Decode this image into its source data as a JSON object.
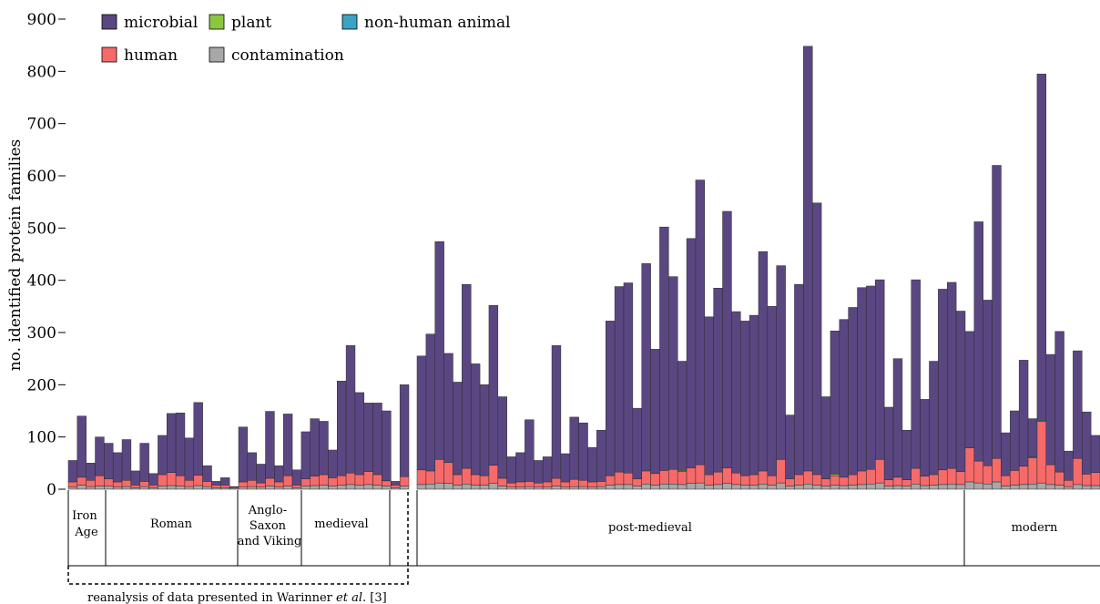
{
  "colors": {
    "microbial": "#5a4782",
    "plant": "#8cc63f",
    "non_human_animal": "#3aa3c4",
    "human": "#f76a6a",
    "contamination": "#a8a8a8"
  },
  "chart_data": {
    "type": "bar",
    "stacked": true,
    "ylabel": "no. identified protein families",
    "ylim": [
      0,
      900
    ],
    "yticks": [
      0,
      100,
      200,
      300,
      400,
      500,
      600,
      700,
      800,
      900
    ],
    "legend": {
      "placement": "top-left",
      "entries": [
        "microbial",
        "plant",
        "non-human animal",
        "human",
        "contamination"
      ]
    },
    "grid": false,
    "periods": [
      {
        "label": "Iron Age"
      },
      {
        "label": "Roman"
      },
      {
        "label": "Anglo-Saxon and Viking"
      },
      {
        "label": "medieval"
      },
      {
        "label": ""
      },
      {
        "label": "post-medieval"
      },
      {
        "label": "modern"
      }
    ],
    "caption": "reanalysis of data presented in Warinner et al. [3]",
    "caption_parts": [
      "reanalysis of data presented in Warinner ",
      "et al",
      ". [3]"
    ],
    "totals": [
      55,
      140,
      50,
      100,
      88,
      70,
      95,
      35,
      88,
      30,
      103,
      145,
      146,
      98,
      166,
      45,
      15,
      22,
      5,
      119,
      70,
      48,
      149,
      45,
      144,
      37,
      110,
      135,
      130,
      75,
      207,
      275,
      185,
      165,
      165,
      150,
      15,
      200,
      255,
      297,
      474,
      260,
      205,
      392,
      240,
      200,
      352,
      177,
      62,
      70,
      133,
      55,
      62,
      275,
      68,
      138,
      127,
      80,
      113,
      322,
      388,
      395,
      155,
      432,
      268,
      502,
      407,
      245,
      480,
      592,
      330,
      385,
      532,
      340,
      322,
      333,
      455,
      350,
      428,
      142,
      392,
      848,
      548,
      177,
      303,
      325,
      348,
      386,
      389,
      401,
      157,
      250,
      113,
      401,
      172,
      245,
      383,
      396,
      341,
      302,
      512,
      362,
      620,
      108,
      150,
      247,
      135,
      795,
      258,
      302,
      73,
      265,
      148,
      103
    ],
    "human": [
      10,
      15,
      12,
      20,
      14,
      10,
      12,
      5,
      10,
      5,
      22,
      25,
      20,
      12,
      20,
      10,
      5,
      5,
      2,
      10,
      12,
      8,
      15,
      10,
      20,
      5,
      14,
      18,
      20,
      16,
      18,
      22,
      20,
      25,
      20,
      10,
      5,
      18,
      28,
      25,
      45,
      40,
      20,
      30,
      20,
      18,
      35,
      15,
      8,
      10,
      10,
      8,
      10,
      15,
      10,
      14,
      12,
      10,
      10,
      18,
      24,
      22,
      14,
      25,
      22,
      26,
      28,
      25,
      30,
      35,
      20,
      24,
      30,
      22,
      18,
      20,
      25,
      18,
      45,
      14,
      20,
      25,
      20,
      14,
      18,
      16,
      20,
      26,
      28,
      45,
      12,
      16,
      12,
      30,
      18,
      20,
      28,
      30,
      25,
      65,
      42,
      35,
      45,
      20,
      28,
      35,
      50,
      118,
      38,
      25,
      12,
      50,
      22,
      25
    ],
    "contamination": [
      4,
      8,
      5,
      6,
      6,
      4,
      5,
      3,
      5,
      3,
      6,
      7,
      6,
      5,
      7,
      5,
      3,
      3,
      2,
      4,
      5,
      4,
      6,
      4,
      6,
      3,
      6,
      7,
      8,
      6,
      8,
      9,
      8,
      9,
      8,
      6,
      3,
      6,
      9,
      10,
      12,
      11,
      8,
      10,
      8,
      8,
      11,
      6,
      4,
      4,
      5,
      4,
      4,
      6,
      4,
      5,
      5,
      4,
      5,
      8,
      9,
      9,
      6,
      10,
      8,
      10,
      10,
      9,
      11,
      12,
      8,
      9,
      11,
      9,
      8,
      8,
      10,
      8,
      12,
      6,
      8,
      10,
      8,
      6,
      8,
      7,
      8,
      9,
      10,
      12,
      6,
      7,
      6,
      10,
      7,
      8,
      9,
      10,
      9,
      14,
      12,
      10,
      14,
      6,
      8,
      9,
      10,
      12,
      9,
      8,
      5,
      9,
      7,
      7
    ],
    "plant": [
      0,
      0,
      0,
      0,
      0,
      0,
      0,
      0,
      0,
      0,
      0,
      0,
      0,
      0,
      0,
      0,
      0,
      0,
      0,
      0,
      0,
      0,
      0,
      0,
      0,
      0,
      0,
      0,
      0,
      0,
      0,
      0,
      0,
      0,
      0,
      0,
      0,
      0,
      0,
      0,
      0,
      0,
      0,
      0,
      0,
      0,
      0,
      0,
      0,
      0,
      0,
      0,
      0,
      0,
      0,
      0,
      0,
      0,
      0,
      0,
      0,
      0,
      0,
      0,
      0,
      0,
      0,
      2,
      0,
      0,
      0,
      0,
      0,
      0,
      0,
      0,
      0,
      0,
      0,
      0,
      0,
      0,
      0,
      0,
      3,
      0,
      0,
      0,
      0,
      0,
      0,
      0,
      0,
      0,
      0,
      0,
      0,
      0,
      0,
      0,
      0,
      0,
      0,
      0,
      0,
      0,
      0,
      0,
      0,
      0,
      0,
      0,
      0,
      0
    ],
    "non_human_animal": [
      0,
      0,
      0,
      0,
      0,
      0,
      0,
      0,
      0,
      0,
      0,
      0,
      0,
      0,
      0,
      0,
      0,
      0,
      0,
      0,
      0,
      0,
      0,
      0,
      0,
      0,
      0,
      0,
      0,
      0,
      0,
      0,
      0,
      0,
      0,
      0,
      0,
      0,
      0,
      0,
      0,
      0,
      0,
      0,
      0,
      0,
      0,
      0,
      0,
      0,
      0,
      0,
      0,
      0,
      0,
      0,
      0,
      0,
      0,
      0,
      0,
      0,
      0,
      0,
      0,
      0,
      0,
      0,
      0,
      0,
      0,
      0,
      0,
      0,
      0,
      0,
      0,
      0,
      0,
      0,
      0,
      0,
      0,
      0,
      0,
      0,
      0,
      0,
      0,
      0,
      0,
      0,
      0,
      0,
      0,
      0,
      0,
      0,
      0,
      0,
      0,
      0,
      0,
      0,
      0,
      0,
      2,
      2,
      0,
      0,
      0,
      0,
      0,
      0
    ]
  }
}
